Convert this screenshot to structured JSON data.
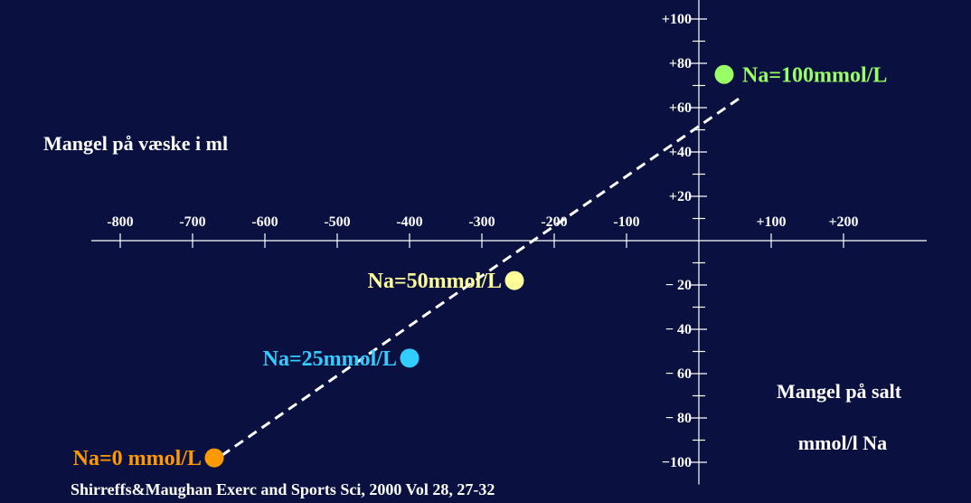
{
  "chart_data": {
    "type": "scatter",
    "title": "",
    "ylabel": "Mangel på væske i ml",
    "xlabel_lines": [
      "Mangel på salt",
      "mmol/l Na"
    ],
    "x_ticks": [
      {
        "value": -800,
        "label": "-800"
      },
      {
        "value": -700,
        "label": "-700"
      },
      {
        "value": -600,
        "label": "-600"
      },
      {
        "value": -500,
        "label": "-500"
      },
      {
        "value": -400,
        "label": "-400"
      },
      {
        "value": -300,
        "label": "-300"
      },
      {
        "value": -200,
        "label": "-200"
      },
      {
        "value": -100,
        "label": "-100"
      },
      {
        "value": 100,
        "label": "+100"
      },
      {
        "value": 200,
        "label": "+200"
      }
    ],
    "y_ticks": [
      {
        "value": 100,
        "label": "+100"
      },
      {
        "value": 80,
        "label": "+80"
      },
      {
        "value": 60,
        "label": "+60"
      },
      {
        "value": 40,
        "label": "+40"
      },
      {
        "value": 20,
        "label": "+20"
      },
      {
        "value": -20,
        "label": "− 20"
      },
      {
        "value": -40,
        "label": "− 40"
      },
      {
        "value": -60,
        "label": "− 60"
      },
      {
        "value": -80,
        "label": "− 80"
      },
      {
        "value": -100,
        "label": "−100"
      }
    ],
    "xlim": [
      -840,
      315
    ],
    "ylim": [
      -110,
      110
    ],
    "points": [
      {
        "label": "Na=100mmol/L",
        "x": 35,
        "y": 75,
        "color": "#99ff66"
      },
      {
        "label": "Na=50mmol/L",
        "x": -255,
        "y": -18,
        "color": "#ffff99"
      },
      {
        "label": "Na=25mmol/L",
        "x": -400,
        "y": -53,
        "color": "#33ccff"
      },
      {
        "label": "Na=0 mmol/L",
        "x": -670,
        "y": -98,
        "color": "#ff9900"
      }
    ],
    "trend_line": {
      "x": [
        -660,
        55
      ],
      "y": [
        -97,
        64
      ],
      "style": "dashed",
      "color": "#ffffff"
    }
  },
  "footer": {
    "citation": "Shirreffs&Maughan Exerc and Sports Sci, 2000 Vol 28, 27-32"
  }
}
